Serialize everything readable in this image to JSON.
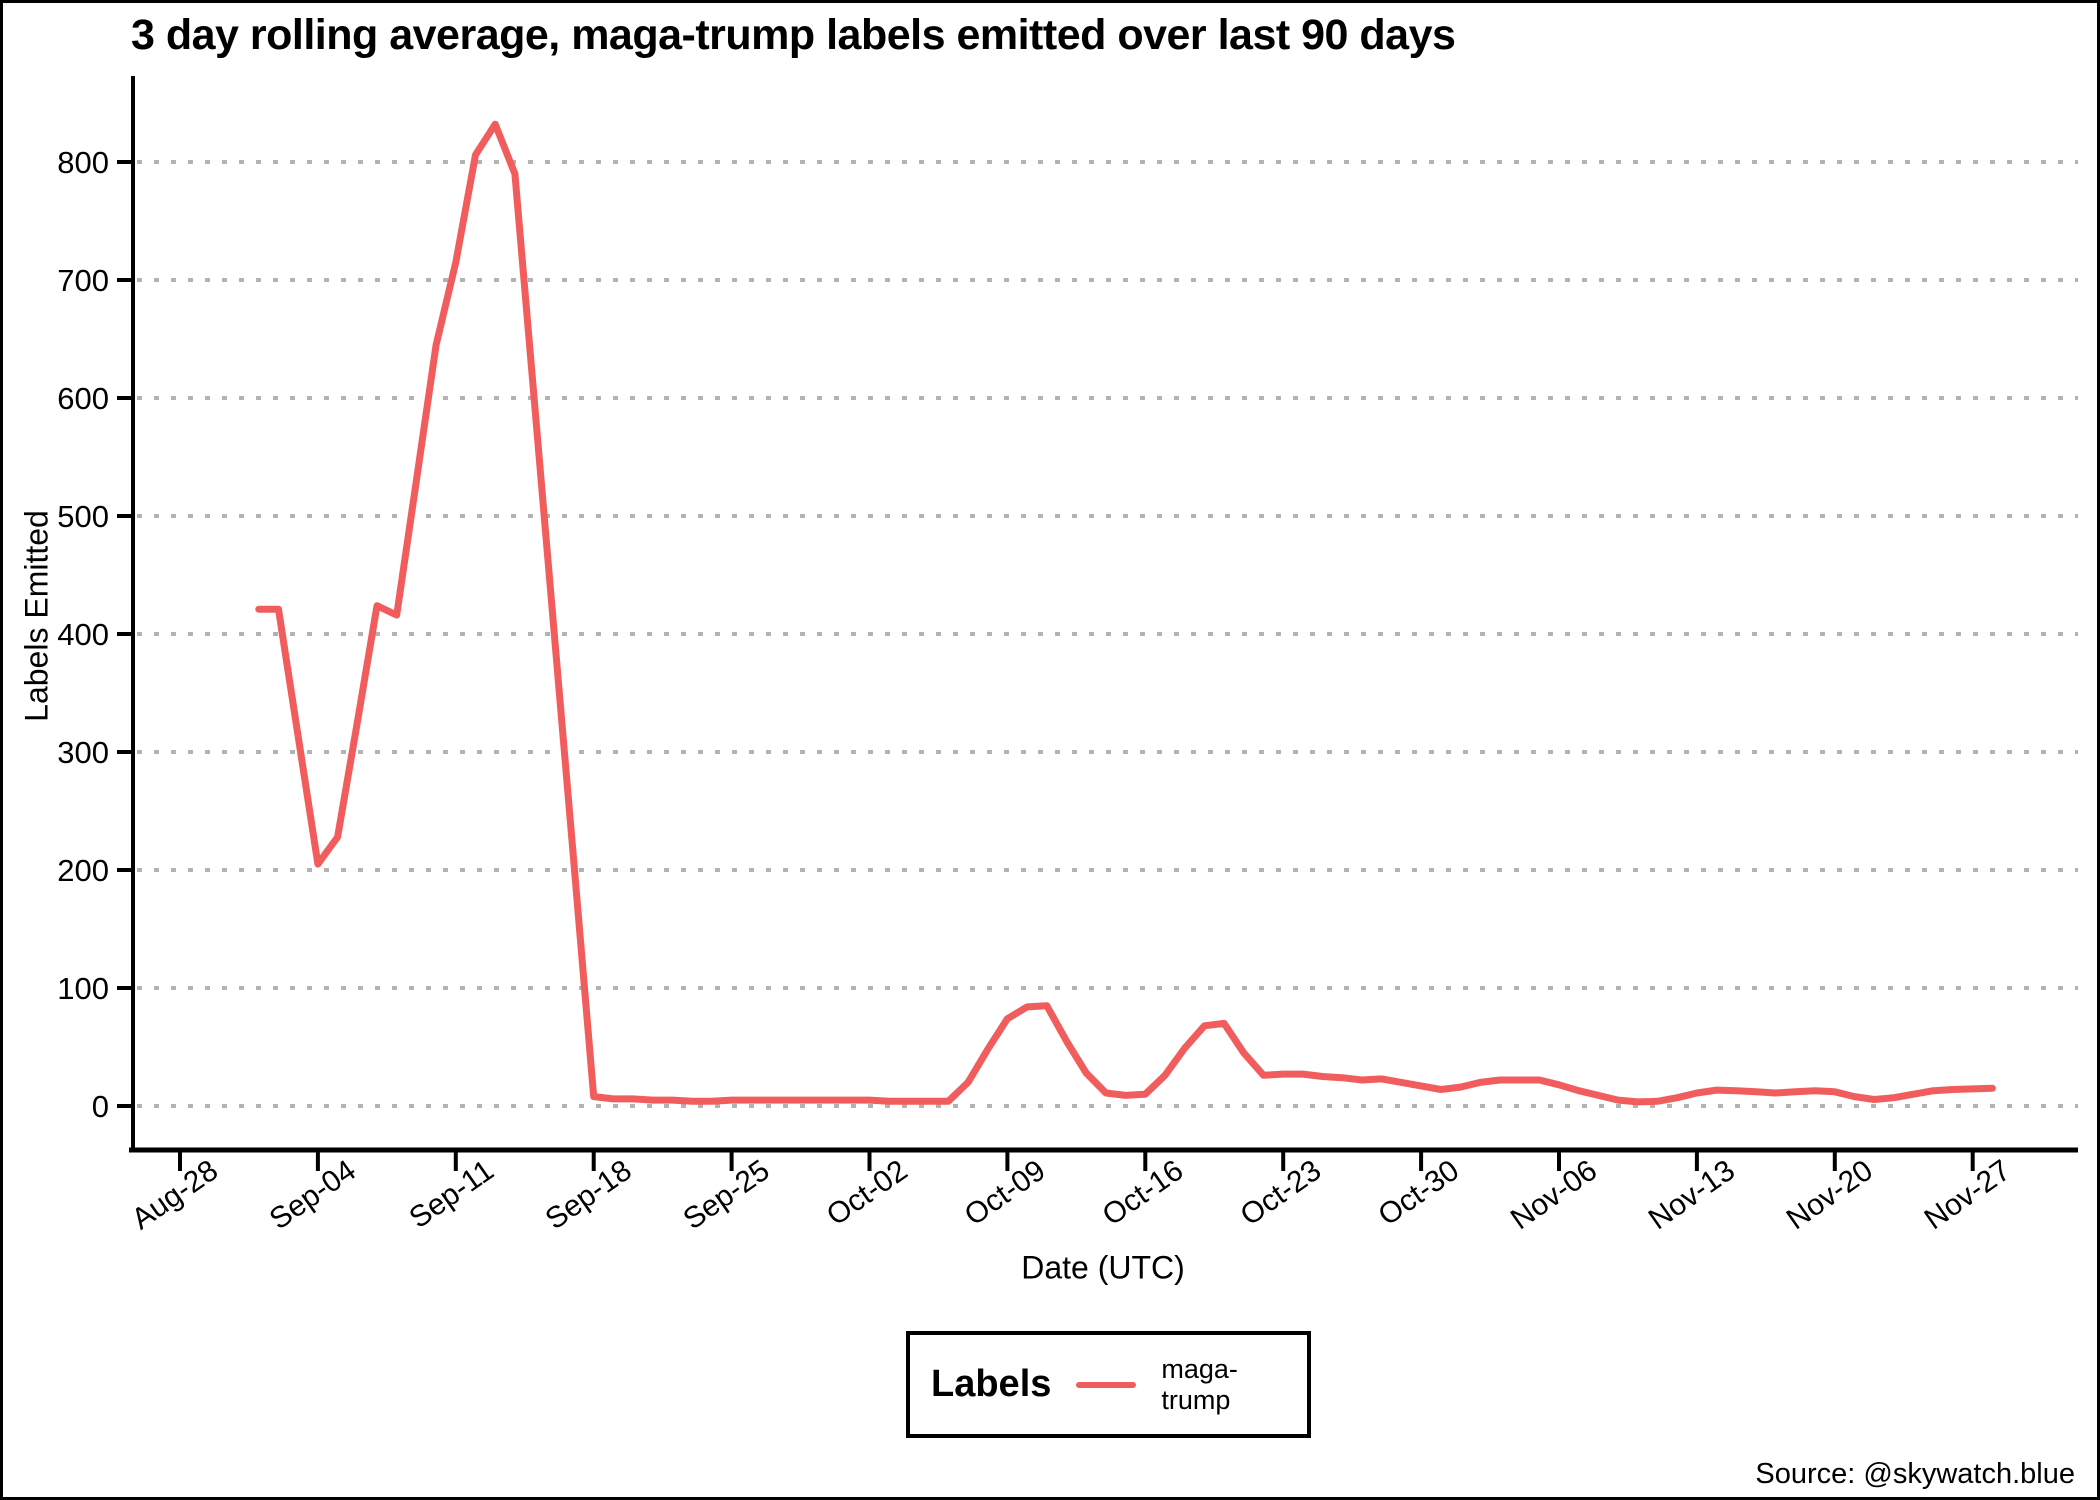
{
  "source": "Source: @skywatch.blue",
  "legend": {
    "title": "Labels",
    "series_label": "maga-trump"
  },
  "colors": {
    "line": "#f15d5d",
    "grid": "#b3b3b3",
    "axis": "#000000",
    "background": "#ffffff"
  },
  "chart_data": {
    "type": "line",
    "title": "3 day rolling average, maga-trump labels emitted over last 90 days",
    "xlabel": "Date (UTC)",
    "ylabel": "Labels Emitted",
    "grid": "horizontal-dotted",
    "legend_position": "bottom-center",
    "ylim": [
      0,
      870
    ],
    "y_ticks": [
      0,
      100,
      200,
      300,
      400,
      500,
      600,
      700,
      800
    ],
    "x_ticks": [
      {
        "label": "Aug-28",
        "day": 0
      },
      {
        "label": "Sep-04",
        "day": 7
      },
      {
        "label": "Sep-11",
        "day": 14
      },
      {
        "label": "Sep-18",
        "day": 21
      },
      {
        "label": "Sep-25",
        "day": 28
      },
      {
        "label": "Oct-02",
        "day": 35
      },
      {
        "label": "Oct-09",
        "day": 42
      },
      {
        "label": "Oct-16",
        "day": 49
      },
      {
        "label": "Oct-23",
        "day": 56
      },
      {
        "label": "Oct-30",
        "day": 63
      },
      {
        "label": "Nov-06",
        "day": 70
      },
      {
        "label": "Nov-13",
        "day": 77
      },
      {
        "label": "Nov-20",
        "day": 84
      },
      {
        "label": "Nov-27",
        "day": 91
      }
    ],
    "start_day_offset": 4,
    "start_date": "Sep-01",
    "end_date": "Nov-28",
    "series": [
      {
        "name": "maga-trump",
        "color": "#f15d5d",
        "values": [
          421,
          421,
          313,
          205,
          228,
          325,
          424,
          416,
          530,
          645,
          715,
          806,
          832,
          790,
          595,
          400,
          205,
          8,
          6,
          6,
          5,
          5,
          4,
          4,
          5,
          5,
          5,
          5,
          5,
          5,
          5,
          5,
          4,
          4,
          4,
          4,
          20,
          48,
          74,
          84,
          85,
          55,
          28,
          11,
          9,
          10,
          26,
          49,
          68,
          70,
          45,
          26,
          27,
          27,
          25,
          24,
          22,
          23,
          20,
          17,
          14,
          16,
          20,
          22,
          22,
          22,
          18,
          13,
          9,
          5,
          3.5,
          4,
          7,
          11,
          13.5,
          13,
          12,
          11,
          12,
          13,
          12,
          8,
          5.5,
          7,
          10,
          13,
          14,
          14.5,
          15
        ]
      }
    ]
  }
}
